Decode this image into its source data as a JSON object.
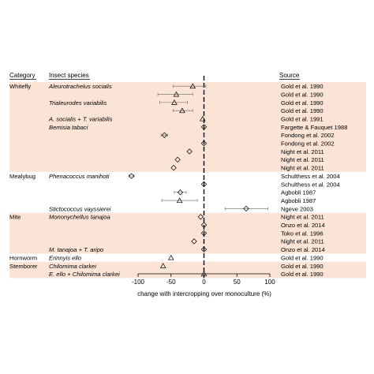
{
  "headers": {
    "category": "Category",
    "species": "Insect species",
    "source": "Source"
  },
  "chart_data": {
    "type": "forest",
    "xlabel": "change with intercropping over monoculture (%)",
    "xlim": [
      -100,
      100
    ],
    "xticks": [
      -100,
      -50,
      0,
      50,
      100
    ],
    "reference_line": 0,
    "shaded_color": "#fbe3d5",
    "groups": [
      {
        "category": "Whitefly",
        "shaded": true,
        "rows": [
          {
            "species": "Aleurotrachelus socialis",
            "source": "Gold et al. 1990",
            "value": -17,
            "ci": [
              -47,
              3
            ],
            "marker": "triangle"
          },
          {
            "species": "",
            "source": "Gold et al. 1990",
            "value": -42,
            "ci": [
              -70,
              -17
            ],
            "marker": "triangle"
          },
          {
            "species": "Trialeurodes variabilis",
            "source": "Gold et al. 1990",
            "value": -45,
            "ci": [
              -67,
              -25
            ],
            "marker": "triangle"
          },
          {
            "species": "",
            "source": "Gold et al. 1990",
            "value": -33,
            "ci": [
              -47,
              -17
            ],
            "marker": "triangle"
          },
          {
            "species": "A. socialis + T. variabilis",
            "source": "Gold et al. 1991",
            "value": -2,
            "ci": null,
            "marker": "triangle"
          },
          {
            "species": "Bemisia tabaci",
            "source": "Fargette & Fauquet 1988",
            "value": 0,
            "ci": null,
            "marker": "diamond"
          },
          {
            "species": "",
            "source": "Fondong et al. 2002",
            "value": -60,
            "ci": [
              -65,
              -55
            ],
            "marker": "diamond"
          },
          {
            "species": "",
            "source": "Fondong et al. 2002",
            "value": 0,
            "ci": null,
            "marker": "diamond"
          },
          {
            "species": "",
            "source": "Night et al. 2011",
            "value": -22,
            "ci": null,
            "marker": "diamond"
          },
          {
            "species": "",
            "source": "Night et al. 2011",
            "value": -40,
            "ci": null,
            "marker": "diamond"
          },
          {
            "species": "",
            "source": "Night et al. 2011",
            "value": -46,
            "ci": null,
            "marker": "diamond"
          }
        ]
      },
      {
        "category": "Mealybug",
        "shaded": false,
        "rows": [
          {
            "species": "Phenacoccus manihoti",
            "source": "Schulthess et al. 2004",
            "value": -110,
            "ci": [
              -114,
              -106
            ],
            "marker": "diamond"
          },
          {
            "species": "",
            "source": "Schulthess et al. 2004",
            "value": 0,
            "ci": null,
            "marker": "diamond"
          },
          {
            "species": "",
            "source": "Agbobli 1987",
            "value": -36,
            "ci": [
              -45,
              -27
            ],
            "marker": "diamond"
          },
          {
            "species": "",
            "source": "Agbobli 1987",
            "value": -37,
            "ci": [
              -64,
              -10
            ],
            "marker": "triangle"
          },
          {
            "species": "Stictococcus vayssierei",
            "source": "Ngeve 2003",
            "value": 64,
            "ci": [
              32,
              97
            ],
            "marker": "diamond"
          }
        ]
      },
      {
        "category": "Mite",
        "shaded": true,
        "rows": [
          {
            "species": "Mononychellus tanajoa",
            "source": "Night et al. 2011",
            "value": -5,
            "ci": null,
            "marker": "diamond"
          },
          {
            "species": "",
            "source": "Onzo et al. 2014",
            "value": 0,
            "ci": null,
            "marker": "diamond"
          },
          {
            "species": "",
            "source": "Toko et al. 1996",
            "value": 0,
            "ci": null,
            "marker": "diamond"
          },
          {
            "species": "",
            "source": "Night et al. 2011",
            "value": -15,
            "ci": null,
            "marker": "diamond"
          },
          {
            "species": "M. tanajoa + T. aripo",
            "source": "Onzo et al. 2014",
            "value": 0,
            "ci": null,
            "marker": "diamond"
          }
        ]
      },
      {
        "category": "Hornworm",
        "shaded": false,
        "rows": [
          {
            "species": "Erinnyis ello",
            "source": "Gold et al. 1990",
            "value": -50,
            "ci": null,
            "marker": "triangle"
          }
        ]
      },
      {
        "category": "Stemborer",
        "shaded": true,
        "rows": [
          {
            "species": "Chilomima clarkei",
            "source": "Gold et al. 1990",
            "value": -62,
            "ci": null,
            "marker": "triangle"
          },
          {
            "species": "E. ello + Chilomima clarkei",
            "source": "Gold et al. 1990",
            "value": 0,
            "ci": null,
            "marker": "triangle"
          }
        ]
      }
    ]
  }
}
